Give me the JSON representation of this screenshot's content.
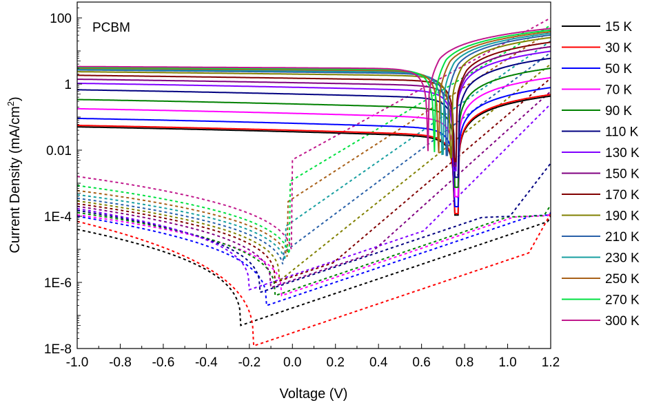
{
  "chart_data": {
    "type": "line",
    "title": "",
    "annotation": "PCBM",
    "xlabel": "Voltage (V)",
    "ylabel": "Current Density (mA/cm²)",
    "ylabel_parts": {
      "main": "Current Density (mA/cm",
      "sup": "2",
      "end": ")"
    },
    "xlim": [
      -1.0,
      1.2
    ],
    "ylim": [
      1e-08,
      250
    ],
    "yscale": "log",
    "grid": false,
    "legend_position": "right-outside",
    "x_ticks": [
      "-1.0",
      "-0.8",
      "-0.6",
      "-0.4",
      "-0.2",
      "0.0",
      "0.2",
      "0.4",
      "0.6",
      "0.8",
      "1.0",
      "1.2"
    ],
    "y_ticks": [
      "1E-8",
      "1E-6",
      "1E-4",
      "0.01",
      "1",
      "100"
    ],
    "line_styles": {
      "solid": "illuminated",
      "dashed": "dark"
    },
    "series": [
      {
        "name": "15 K",
        "color": "#000000",
        "jsc": 0.036,
        "voc": 0.77,
        "dark_rev": 4e-05,
        "dark_min_v": -0.24,
        "dark_min": 5e-08,
        "dark_fwd_end": 0.0001,
        "dark_on": 1.9,
        "photo_slope": 0.45
      },
      {
        "name": "30 K",
        "color": "#ff0000",
        "jsc": 0.04,
        "voc": 0.77,
        "dark_rev": 7e-05,
        "dark_min_v": -0.18,
        "dark_min": 1.2e-08,
        "dark_fwd_end": 0.00012,
        "dark_on": 1.8,
        "photo_slope": 0.45
      },
      {
        "name": "50 K",
        "color": "#0000ff",
        "jsc": 0.065,
        "voc": 0.77,
        "dark_rev": 0.0001,
        "dark_min_v": -0.12,
        "dark_min": 2e-07,
        "dark_fwd_end": 0.00013,
        "dark_on": 1.75,
        "photo_slope": 0.45
      },
      {
        "name": "70 K",
        "color": "#ff00ff",
        "jsc": 0.13,
        "voc": 0.77,
        "dark_rev": 0.00011,
        "dark_min_v": -0.05,
        "dark_min": 4e-07,
        "dark_fwd_end": 0.00014,
        "dark_on": 1.7,
        "photo_slope": 0.42
      },
      {
        "name": "90 K",
        "color": "#008000",
        "jsc": 0.25,
        "voc": 0.77,
        "dark_rev": 0.00013,
        "dark_min_v": -0.08,
        "dark_min": 4e-07,
        "dark_fwd_end": 0.00022,
        "dark_on": 1.6,
        "photo_slope": 0.4
      },
      {
        "name": "110 K",
        "color": "#000080",
        "jsc": 0.5,
        "voc": 0.77,
        "dark_rev": 0.00015,
        "dark_min_v": -0.15,
        "dark_min": 5e-07,
        "dark_fwd_end": 0.004,
        "dark_on": 1.3,
        "photo_slope": 0.38
      },
      {
        "name": "130 K",
        "color": "#8000ff",
        "jsc": 0.8,
        "voc": 0.76,
        "dark_rev": 0.00017,
        "dark_min_v": -0.2,
        "dark_min": 6e-07,
        "dark_fwd_end": 0.25,
        "dark_on": 1.0,
        "photo_slope": 0.35
      },
      {
        "name": "150 K",
        "color": "#800080",
        "jsc": 1.1,
        "voc": 0.76,
        "dark_rev": 0.0002,
        "dark_min_v": -0.1,
        "dark_min": 7e-07,
        "dark_fwd_end": 0.6,
        "dark_on": 0.9,
        "photo_slope": 0.3
      },
      {
        "name": "170 K",
        "color": "#800000",
        "jsc": 1.5,
        "voc": 0.76,
        "dark_rev": 0.00024,
        "dark_min_v": -0.08,
        "dark_min": 1e-06,
        "dark_fwd_end": 1.5,
        "dark_on": 0.85,
        "photo_slope": 0.25
      },
      {
        "name": "190 K",
        "color": "#808000",
        "jsc": 2.0,
        "voc": 0.74,
        "dark_rev": 0.00029,
        "dark_min_v": -0.06,
        "dark_min": 1.2e-06,
        "dark_fwd_end": 4.0,
        "dark_on": 0.8,
        "photo_slope": 0.2
      },
      {
        "name": "210 K",
        "color": "#2860a8",
        "jsc": 2.3,
        "voc": 0.72,
        "dark_rev": 0.00035,
        "dark_min_v": -0.04,
        "dark_min": 1.5e-06,
        "dark_fwd_end": 9.0,
        "dark_on": 0.75,
        "photo_slope": 0.18
      },
      {
        "name": "230 K",
        "color": "#179fa0",
        "jsc": 2.5,
        "voc": 0.7,
        "dark_rev": 0.00045,
        "dark_min_v": -0.03,
        "dark_min": 2e-06,
        "dark_fwd_end": 20.0,
        "dark_on": 0.7,
        "photo_slope": 0.15
      },
      {
        "name": "250 K",
        "color": "#a86018",
        "jsc": 2.7,
        "voc": 0.68,
        "dark_rev": 0.0006,
        "dark_min_v": -0.02,
        "dark_min": 2.5e-06,
        "dark_fwd_end": 40.0,
        "dark_on": 0.65,
        "photo_slope": 0.13
      },
      {
        "name": "270 K",
        "color": "#00e040",
        "jsc": 2.9,
        "voc": 0.66,
        "dark_rev": 0.00085,
        "dark_min_v": -0.01,
        "dark_min": 3e-06,
        "dark_fwd_end": 60.0,
        "dark_on": 0.6,
        "photo_slope": 0.11
      },
      {
        "name": "300 K",
        "color": "#c0188c",
        "jsc": 3.1,
        "voc": 0.63,
        "dark_rev": 0.0016,
        "dark_min_v": 0.0,
        "dark_min": 4e-06,
        "dark_fwd_end": 100.0,
        "dark_on": 0.55,
        "photo_slope": 0.1
      }
    ]
  }
}
